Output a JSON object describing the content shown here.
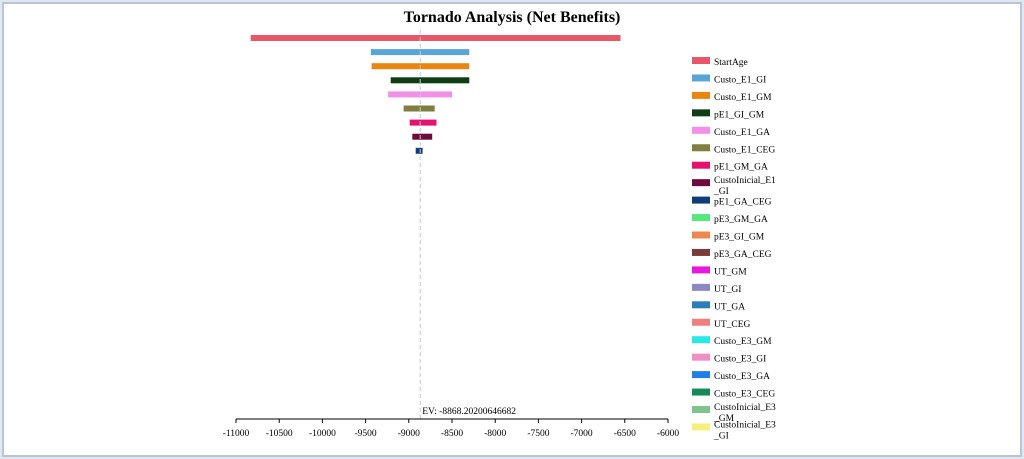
{
  "chart_data": {
    "type": "tornado",
    "title": "Tornado Analysis (Net Benefits)",
    "ev_label": "EV: -8868.20200646682",
    "ev": -8868.20200646682,
    "xlim": [
      -11000,
      -6000
    ],
    "x_ticks": [
      -11000,
      -10500,
      -10000,
      -9500,
      -9000,
      -8500,
      -8000,
      -7500,
      -7000,
      -6500,
      -6000
    ],
    "x_tick_labels": [
      "-11000",
      "-10500",
      "-10000",
      "-9500",
      "-9000",
      "-8500",
      "-8000",
      "-7500",
      "-7000",
      "-6500",
      "-6000"
    ],
    "series": [
      {
        "name": "StartAge",
        "color": "#e8566a",
        "low": -10830,
        "high": -6550
      },
      {
        "name": "Custo_E1_GI",
        "color": "#5aa5d8",
        "low": -9440,
        "high": -8300
      },
      {
        "name": "Custo_E1_GM",
        "color": "#e8860f",
        "low": -9430,
        "high": -8300
      },
      {
        "name": "pE1_GI_GM",
        "color": "#0f3d14",
        "low": -9210,
        "high": -8300
      },
      {
        "name": "Custo_E1_GA",
        "color": "#f28fe6",
        "low": -9240,
        "high": -8500
      },
      {
        "name": "Custo_E1_CEG",
        "color": "#7f7f3f",
        "low": -9060,
        "high": -8700
      },
      {
        "name": "pE1_GM_GA",
        "color": "#e6106e",
        "low": -8990,
        "high": -8680
      },
      {
        "name": "CustoInicial_E1_GI",
        "color": "#6e0a3c",
        "low": -8960,
        "high": -8730
      },
      {
        "name": "pE1_GA_CEG",
        "color": "#103d78",
        "low": -8920,
        "high": -8840
      },
      {
        "name": "pE3_GM_GA",
        "color": "#55e87a",
        "low": -8868,
        "high": -8868
      },
      {
        "name": "pE3_GI_GM",
        "color": "#f0864f",
        "low": -8868,
        "high": -8868
      },
      {
        "name": "pE3_GA_CEG",
        "color": "#7a3b3b",
        "low": -8868,
        "high": -8868
      },
      {
        "name": "UT_GM",
        "color": "#e817e0",
        "low": -8868,
        "high": -8868
      },
      {
        "name": "UT_GI",
        "color": "#8c88c2",
        "low": -8868,
        "high": -8868
      },
      {
        "name": "UT_GA",
        "color": "#2a7fb8",
        "low": -8868,
        "high": -8868
      },
      {
        "name": "UT_CEG",
        "color": "#f07f7f",
        "low": -8868,
        "high": -8868
      },
      {
        "name": "Custo_E3_GM",
        "color": "#2be8e8",
        "low": -8868,
        "high": -8868
      },
      {
        "name": "Custo_E3_GI",
        "color": "#f08fc4",
        "low": -8868,
        "high": -8868
      },
      {
        "name": "Custo_E3_GA",
        "color": "#1e7fe8",
        "low": -8868,
        "high": -8868
      },
      {
        "name": "Custo_E3_CEG",
        "color": "#138a5a",
        "low": -8868,
        "high": -8868
      },
      {
        "name": "CustoInicial_E3_GM",
        "color": "#7fc48a",
        "low": -8868,
        "high": -8868
      },
      {
        "name": "CustoInicial_E3_GI",
        "color": "#f5f07a",
        "low": -8868,
        "high": -8868
      }
    ],
    "legend_labels": [
      [
        "StartAge"
      ],
      [
        "Custo_E1_GI"
      ],
      [
        "Custo_E1_GM"
      ],
      [
        "pE1_GI_GM"
      ],
      [
        "Custo_E1_GA"
      ],
      [
        "Custo_E1_CEG"
      ],
      [
        "pE1_GM_GA"
      ],
      [
        "CustoInicial_E1",
        "_GI"
      ],
      [
        "pE1_GA_CEG"
      ],
      [
        "pE3_GM_GA"
      ],
      [
        "pE3_GI_GM"
      ],
      [
        "pE3_GA_CEG"
      ],
      [
        "UT_GM"
      ],
      [
        "UT_GI"
      ],
      [
        "UT_GA"
      ],
      [
        "UT_CEG"
      ],
      [
        "Custo_E3_GM"
      ],
      [
        "Custo_E3_GI"
      ],
      [
        "Custo_E3_GA"
      ],
      [
        "Custo_E3_CEG"
      ],
      [
        "CustoInicial_E3",
        "_GM"
      ],
      [
        "CustoInicial_E3",
        "_GI"
      ]
    ]
  }
}
